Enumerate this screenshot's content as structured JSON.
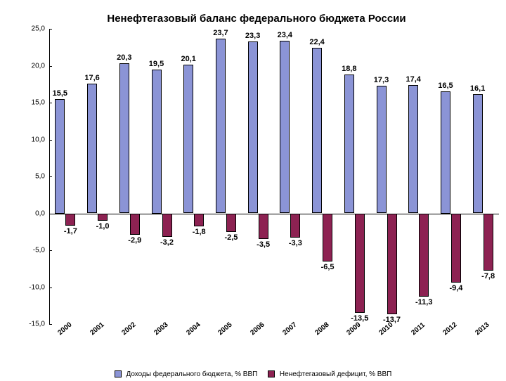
{
  "chart": {
    "type": "bar",
    "title": "Ненефтегазовый баланс федерального бюджета России",
    "title_fontsize": 15,
    "background_color": "#ffffff",
    "ylim": [
      -15.0,
      25.0
    ],
    "ytick_step": 5.0,
    "yticks": [
      "25,0",
      "20,0",
      "15,0",
      "10,0",
      "5,0",
      "0,0",
      "-5,0",
      "-10,0",
      "-15,0"
    ],
    "ytick_values": [
      25.0,
      20.0,
      15.0,
      10.0,
      5.0,
      0.0,
      -5.0,
      -10.0,
      -15.0
    ],
    "categories": [
      "2000",
      "2001",
      "2002",
      "2003",
      "2004",
      "2005",
      "2006",
      "2007",
      "2008",
      "2009",
      "2010",
      "2011",
      "2012",
      "2013"
    ],
    "series": [
      {
        "name": "Доходы федерального бюджета, % ВВП",
        "color": "#8b94d6",
        "values": [
          15.5,
          17.6,
          20.3,
          19.5,
          20.1,
          23.7,
          23.3,
          23.4,
          22.4,
          18.8,
          17.3,
          17.4,
          16.5,
          16.1
        ],
        "labels": [
          "15,5",
          "17,6",
          "20,3",
          "19,5",
          "20,1",
          "23,7",
          "23,3",
          "23,4",
          "22,4",
          "18,8",
          "17,3",
          "17,4",
          "16,5",
          "16,1"
        ]
      },
      {
        "name": "Ненефтегазовый дефицит, % ВВП",
        "color": "#8d2252",
        "values": [
          -1.7,
          -1.0,
          -2.9,
          -3.2,
          -1.8,
          -2.5,
          -3.5,
          -3.3,
          -6.5,
          -13.5,
          -13.7,
          -11.3,
          -9.4,
          -7.8
        ],
        "labels": [
          "-1,7",
          "-1,0",
          "-2,9",
          "-3,2",
          "-1,8",
          "-2,5",
          "-3,5",
          "-3,3",
          "-6,5",
          "-13,5",
          "-13,7",
          "-11,3",
          "-9,4",
          "-7,8"
        ]
      }
    ],
    "bar_border_color": "#000000",
    "axis_color": "#000000",
    "label_fontsize": 11,
    "legend_fontsize": 10,
    "xlabel_fontsize": 10
  }
}
